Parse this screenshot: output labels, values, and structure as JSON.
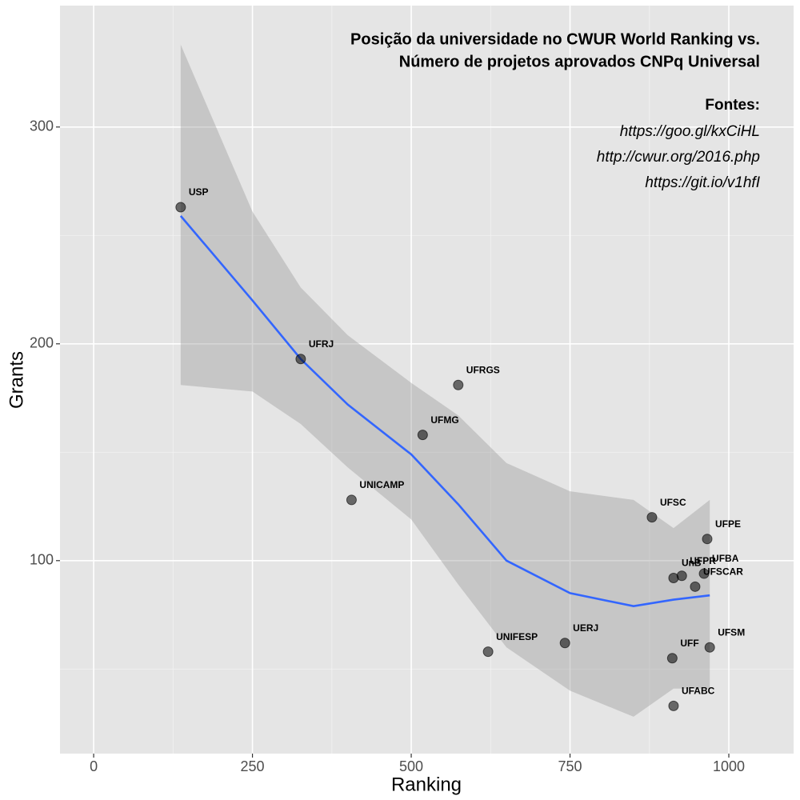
{
  "chart_data": {
    "type": "scatter",
    "title": "Posição da universidade no CWUR World Ranking vs.",
    "subtitle": "Número de projetos aprovados CNPq Universal",
    "annotations": [
      "Fontes:",
      "https://goo.gl/kxCiHL",
      "http://cwur.org/2016.php",
      "https://git.io/v1hfI"
    ],
    "x_label": "Ranking",
    "y_label": "Grants",
    "xlim": [
      -53,
      1102
    ],
    "ylim": [
      11,
      356
    ],
    "xticks": [
      0,
      250,
      500,
      750,
      1000
    ],
    "yticks": [
      100,
      200,
      300
    ],
    "x_minor_ticks": [
      125,
      375,
      625,
      875
    ],
    "y_minor_ticks": [
      50,
      150,
      250
    ],
    "grid": true,
    "points": {
      "color": "#000000",
      "labels": [
        "USP",
        "UFRJ",
        "UFRGS",
        "UFMG",
        "UNICAMP",
        "UFSC",
        "UFPE",
        "UnB",
        "UFPR",
        "UFBA",
        "UFSCAR",
        "UERJ",
        "UNIFESP",
        "UFF",
        "UFSM",
        "UFABC"
      ],
      "x": [
        137,
        326,
        574,
        518,
        406,
        879,
        966,
        913,
        926,
        961,
        947,
        742,
        621,
        911,
        970,
        913
      ],
      "y": [
        263,
        193,
        181,
        158,
        128,
        120,
        110,
        92,
        93,
        94,
        88,
        62,
        58,
        55,
        60,
        33
      ]
    },
    "smooth": {
      "color": "#3366ff",
      "band_color": "#999999",
      "x": [
        137,
        250,
        326,
        400,
        500,
        574,
        650,
        750,
        850,
        913,
        970
      ],
      "values": [
        259,
        220,
        193,
        172,
        149,
        126,
        100,
        85,
        79,
        82,
        84
      ],
      "upper": [
        338,
        261,
        226,
        204,
        182,
        167,
        145,
        132,
        128,
        115,
        128
      ],
      "lower": [
        181,
        178,
        163,
        143,
        119,
        89,
        60,
        40,
        28,
        41,
        41
      ]
    }
  }
}
